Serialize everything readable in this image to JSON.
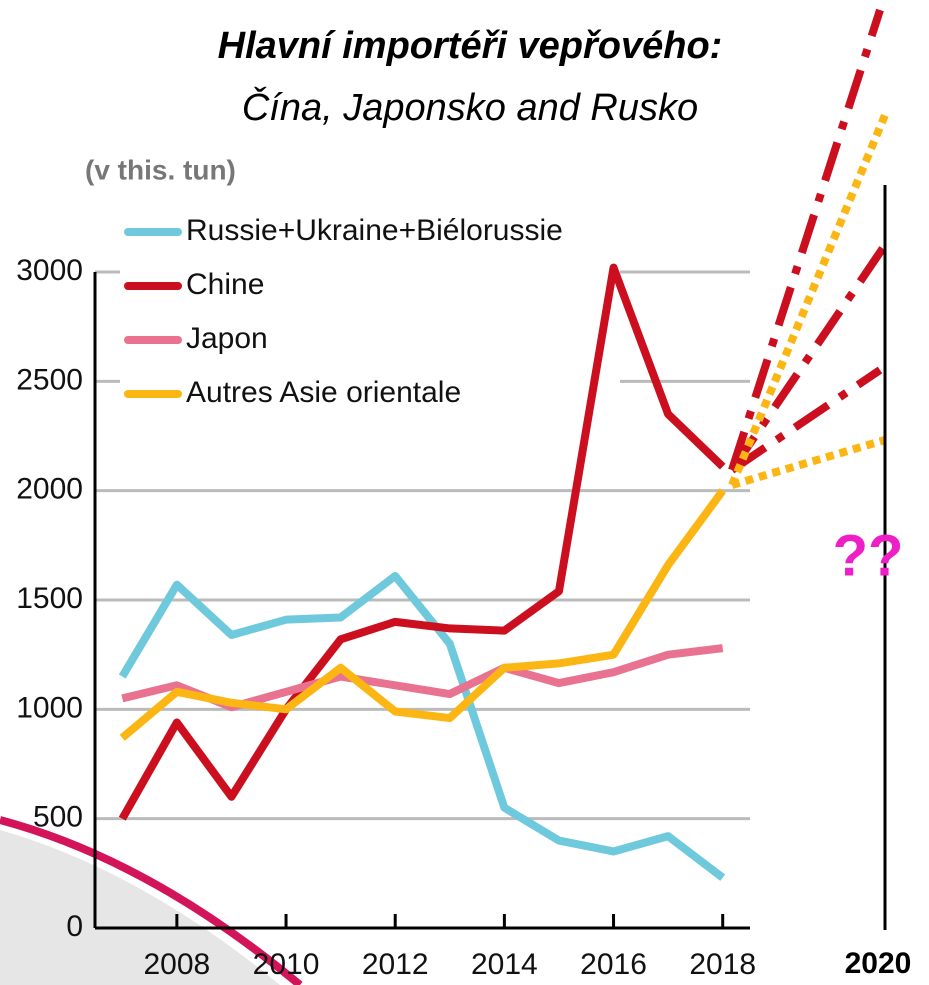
{
  "chart_data": {
    "type": "line",
    "title": "Hlavní importéři vepřového:",
    "subtitle": "Čína, Japonsko and Rusko",
    "y_label": "(v this. tun)",
    "x": [
      2007,
      2008,
      2009,
      2010,
      2011,
      2012,
      2013,
      2014,
      2015,
      2016,
      2017,
      2018
    ],
    "xlim": [
      2006.5,
      2018.5
    ],
    "xticks": [
      2008,
      2010,
      2012,
      2014,
      2016,
      2018
    ],
    "ylim": [
      0,
      3000
    ],
    "yticks": [
      0,
      500,
      1000,
      1500,
      2000,
      2500,
      3000
    ],
    "grid": true,
    "legend": "upper left",
    "annotations": [
      "??",
      "2020"
    ],
    "series": [
      {
        "name": "Russie+Ukraine+Biélorussie",
        "color": "#6ec9dc",
        "values": [
          1150,
          1570,
          1340,
          1410,
          1420,
          1610,
          1300,
          550,
          400,
          350,
          420,
          230
        ]
      },
      {
        "name": "Chine",
        "color": "#cc0f1f",
        "values": [
          500,
          940,
          600,
          1000,
          1320,
          1400,
          1370,
          1360,
          1540,
          3020,
          2350,
          2110
        ]
      },
      {
        "name": "Japon",
        "color": "#e8728f",
        "values": [
          1050,
          1110,
          1010,
          1080,
          1150,
          1110,
          1070,
          1190,
          1120,
          1170,
          1250,
          1280
        ]
      },
      {
        "name": "Autres Asie orientale",
        "color": "#fcb614",
        "values": [
          870,
          1080,
          1030,
          1000,
          1190,
          990,
          960,
          1190,
          1210,
          1250,
          1660,
          2000
        ]
      }
    ]
  }
}
